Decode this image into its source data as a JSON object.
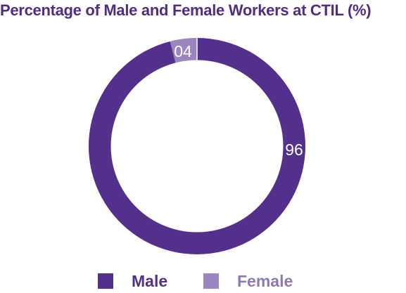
{
  "chart_data": {
    "type": "pie",
    "title": "Percentage of Male and Female Workers at CTIL (%)",
    "categories": [
      "Male",
      "Female"
    ],
    "values": [
      96,
      4
    ],
    "data_labels": [
      "96",
      "04"
    ],
    "colors": [
      "#53308c",
      "#9b85c1"
    ],
    "legend": "bottom"
  },
  "colors": {
    "title": "#4f2d86",
    "male": "#53308c",
    "female": "#9b85c1",
    "female_label": "#8e79b8",
    "male_label": "#53308c"
  }
}
